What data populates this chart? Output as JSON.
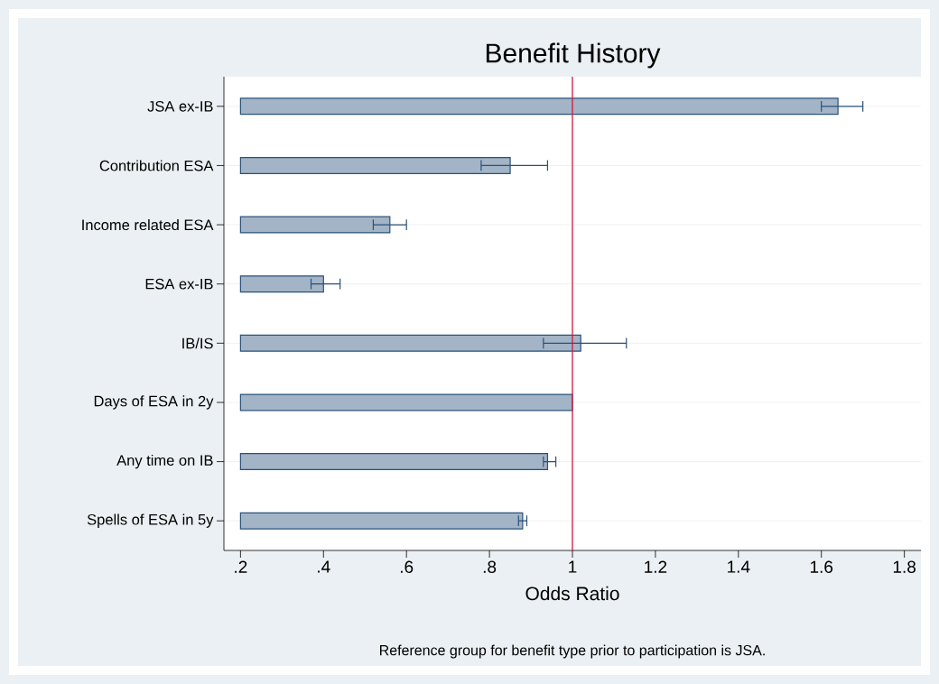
{
  "chart_data": {
    "type": "bar",
    "orientation": "horizontal",
    "title": "Benefit History",
    "xlabel": "Odds Ratio",
    "annotations": [
      "Reference group for benefit type prior to participation is JSA."
    ],
    "categories": [
      "JSA ex-IB",
      "Contribution ESA",
      "Income related ESA",
      "ESA ex-IB",
      "IB/IS",
      "Days of ESA in 2y",
      "Any time on IB",
      "Spells of ESA in 5y"
    ],
    "base": [
      0.2,
      0.2,
      0.2,
      0.2,
      0.2,
      0.2,
      0.2,
      0.2
    ],
    "values": [
      1.44,
      0.65,
      0.36,
      0.2,
      0.82,
      0.8,
      0.74,
      0.68
    ],
    "errors": [
      [
        1.6,
        1.7
      ],
      [
        0.78,
        0.94
      ],
      [
        0.52,
        0.6
      ],
      [
        0.37,
        0.44
      ],
      [
        0.93,
        1.13
      ],
      null,
      [
        0.93,
        0.96
      ],
      [
        0.87,
        0.89
      ]
    ],
    "color": "#a3b4c6",
    "xlim": [
      0.16,
      1.84
    ],
    "xticks": [
      {
        "value": 0.2,
        "label": ".2"
      },
      {
        "value": 0.4,
        "label": ".4"
      },
      {
        "value": 0.6,
        "label": ".6"
      },
      {
        "value": 0.8,
        "label": ".8"
      },
      1,
      {
        "value": 1.2,
        "label": "1.2"
      },
      {
        "value": 1.4,
        "label": "1.4"
      },
      {
        "value": 1.6,
        "label": "1.6"
      },
      {
        "value": 1.8,
        "label": "1.8"
      }
    ],
    "ref_lines": [
      {
        "axis": "x",
        "value": 1,
        "color": "#d6163a"
      }
    ],
    "grid": "y"
  }
}
